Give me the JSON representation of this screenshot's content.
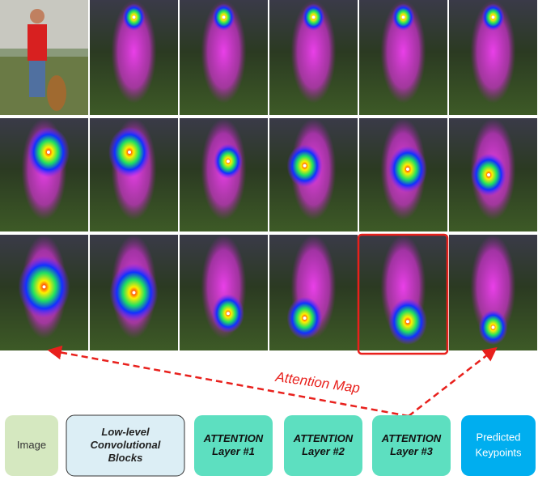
{
  "figure": {
    "annotation": "Attention Map",
    "pipeline": [
      {
        "label": [
          "Image"
        ]
      },
      {
        "label": [
          "Low-level",
          "Convolutional",
          "Blocks"
        ]
      },
      {
        "label": [
          "ATTENTION",
          "Layer #1"
        ]
      },
      {
        "label": [
          "ATTENTION",
          "Layer #2"
        ]
      },
      {
        "label": [
          "ATTENTION",
          "Layer #3"
        ]
      },
      {
        "label": [
          "Predicted",
          "Keypoints"
        ]
      }
    ]
  }
}
